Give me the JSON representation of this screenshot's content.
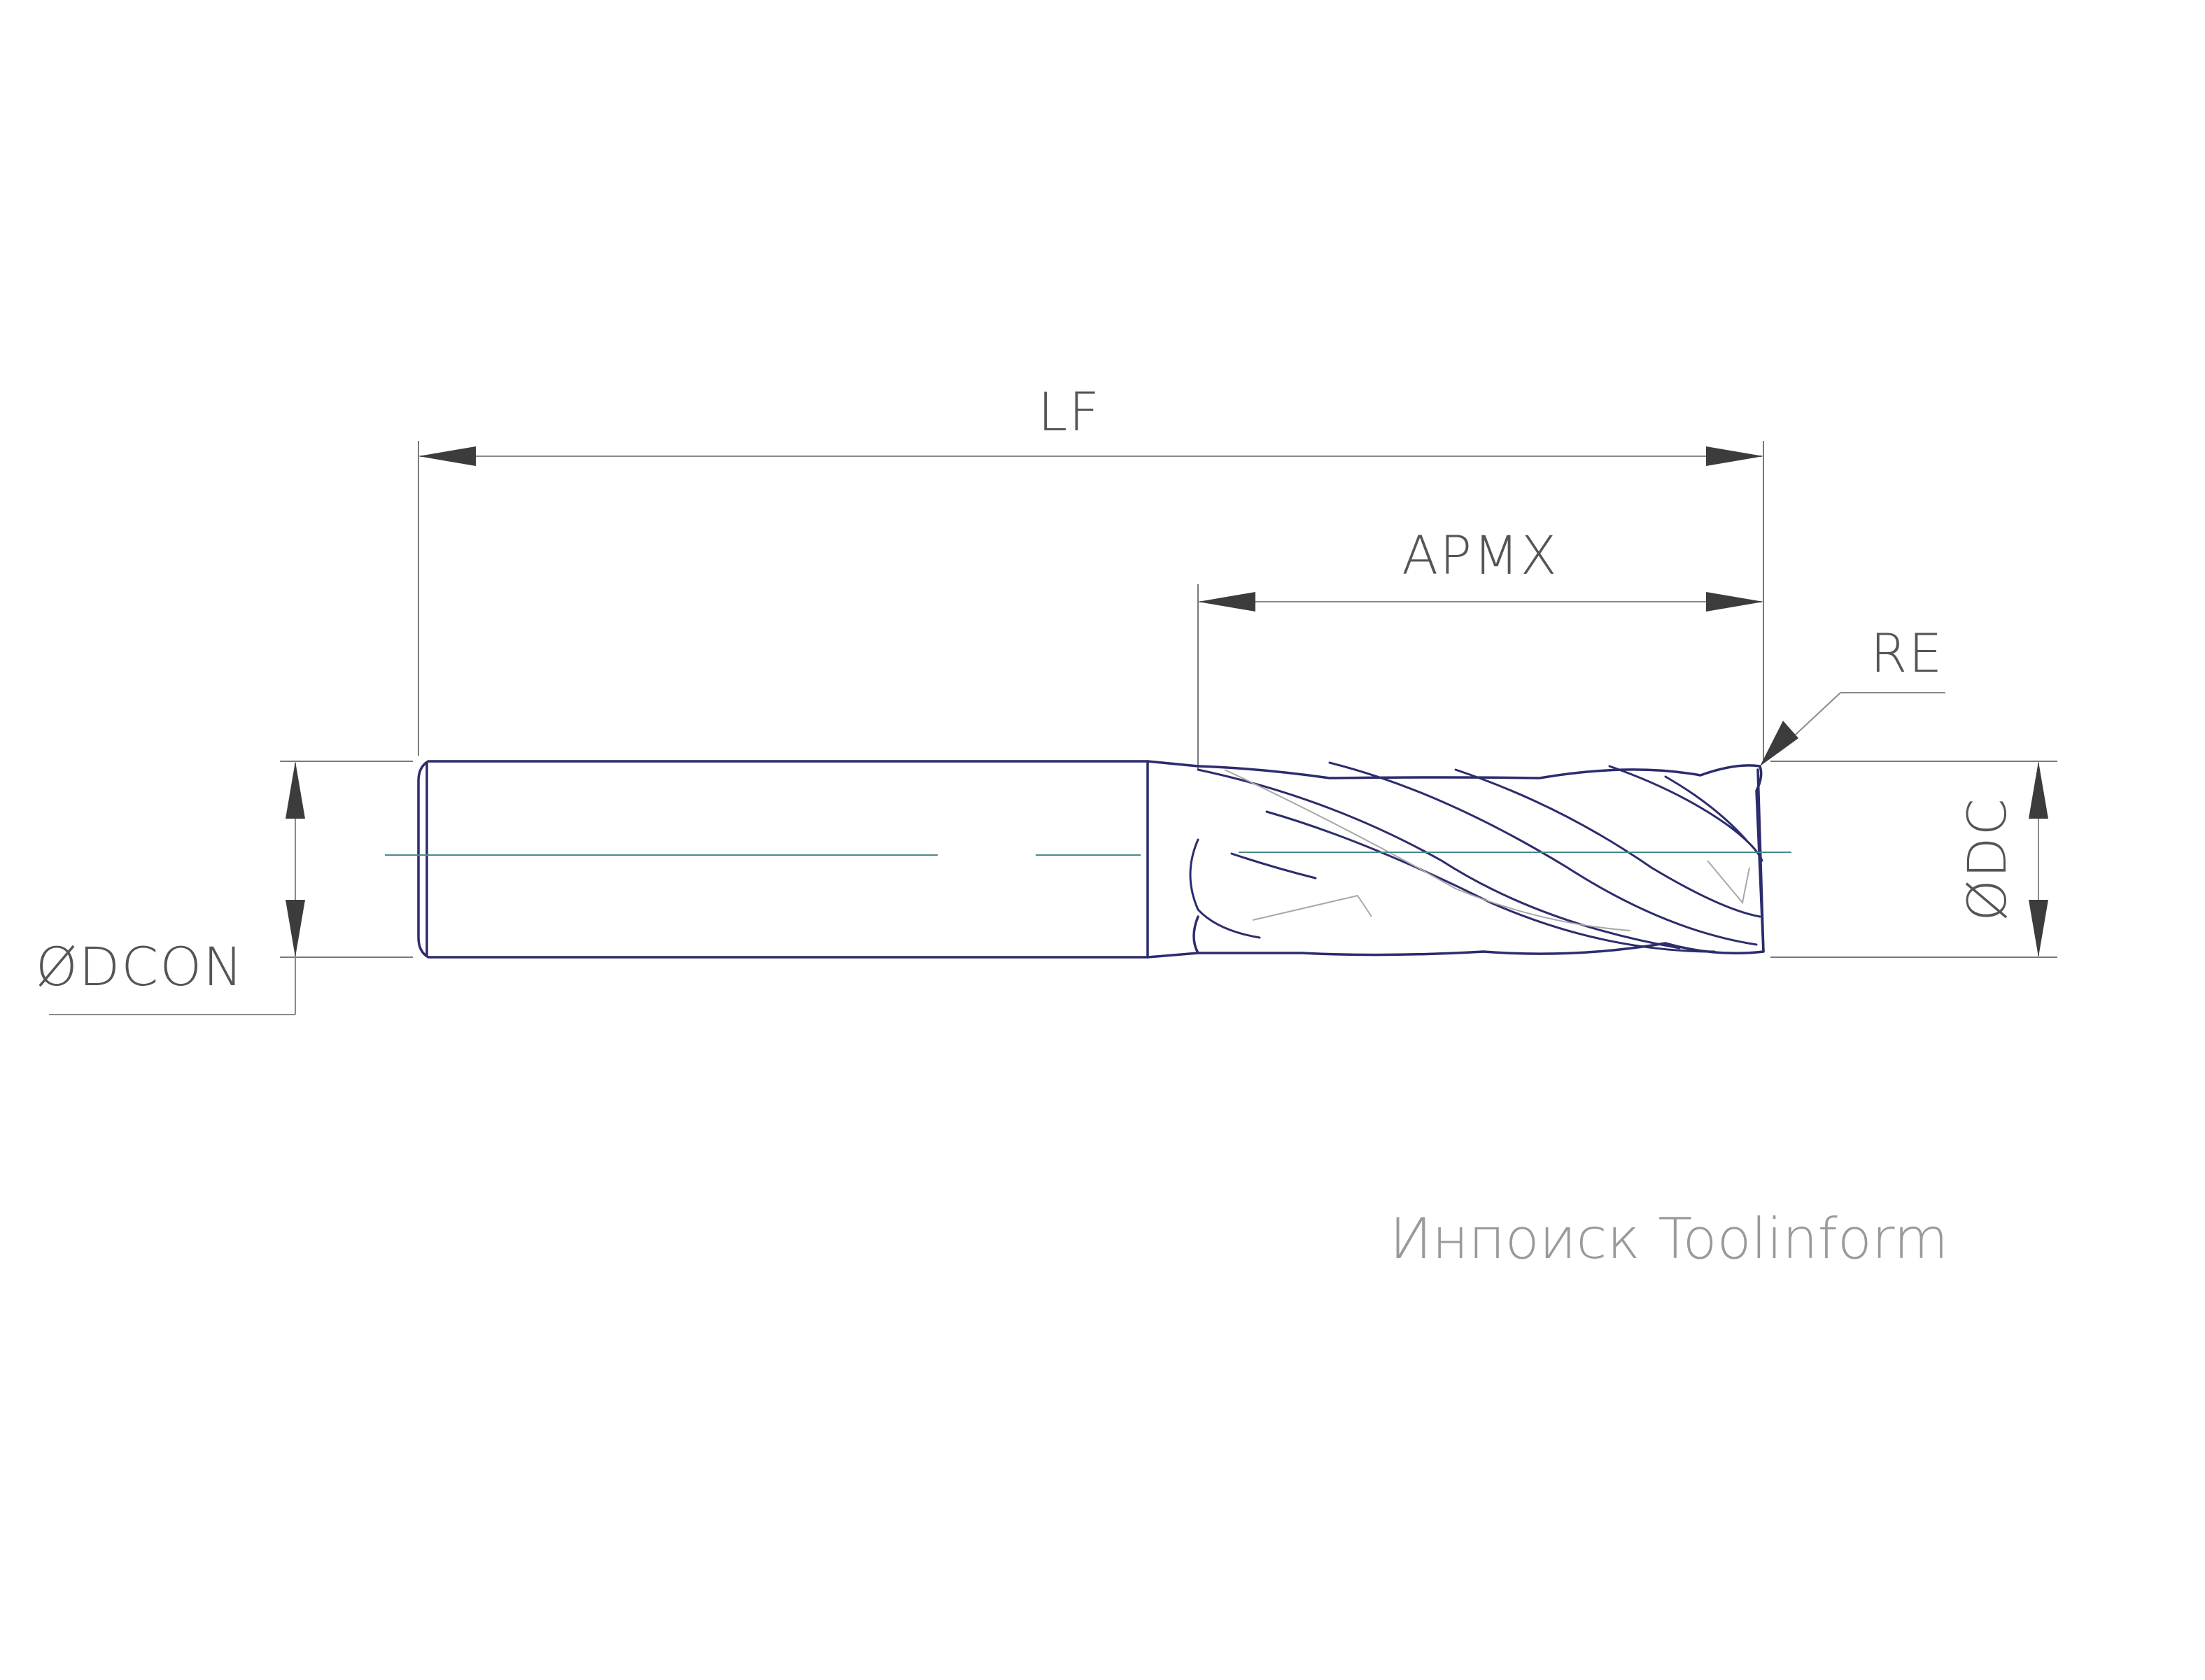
{
  "labels": {
    "lf": "LF",
    "apmx": "APMX",
    "re": "RE",
    "dc": "ØDC",
    "dcon": "ØDCON"
  },
  "watermark": "Инпоиск Toolinform",
  "colors": {
    "outline": "#2c2c6e",
    "dimension": "#8a8a8a",
    "axis": "#4a8a8a",
    "text": "#555555"
  }
}
